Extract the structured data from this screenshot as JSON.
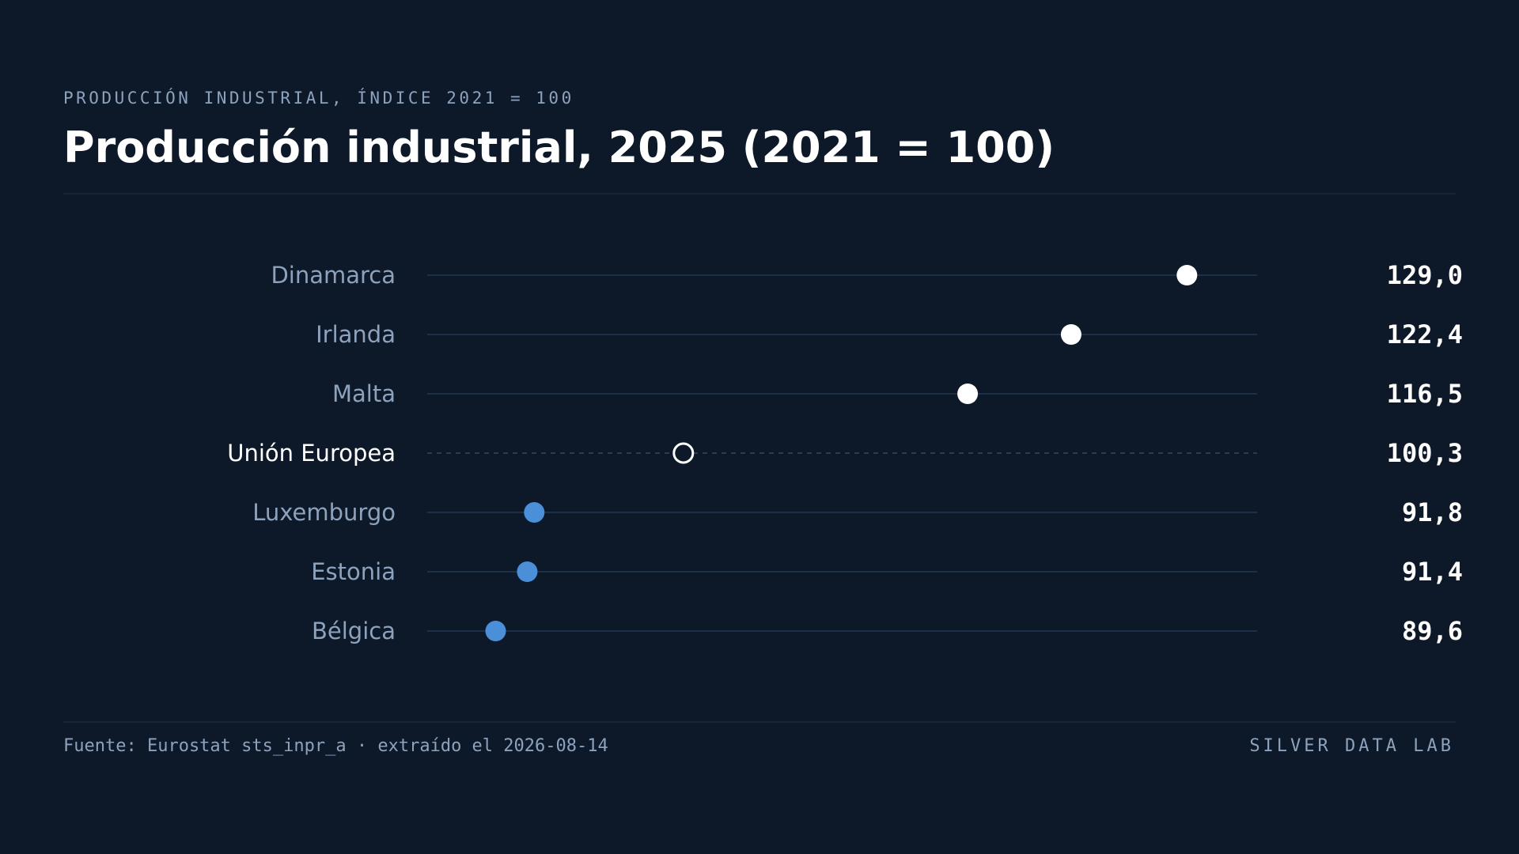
{
  "chart_data": {
    "type": "dot",
    "kicker": "PRODUCCIÓN INDUSTRIAL, ÍNDICE 2021 = 100",
    "title": "Producción industrial, 2025 (2021 = 100)",
    "categories": [
      "Dinamarca",
      "Irlanda",
      "Malta",
      "Unión Europea",
      "Luxemburgo",
      "Estonia",
      "Bélgica"
    ],
    "values": [
      129.0,
      122.4,
      116.5,
      100.3,
      91.8,
      91.4,
      89.6
    ],
    "value_labels": [
      "129,0",
      "122,4",
      "116,5",
      "100,3",
      "91,8",
      "91,4",
      "89,6"
    ],
    "colors": [
      "#ffffff",
      "#ffffff",
      "#ffffff",
      "#ffffff",
      "#4a8fd8",
      "#4a8fd8",
      "#4a8fd8"
    ],
    "reference": "Unión Europea",
    "xlim": [
      85.7,
      133.0
    ],
    "source": "Fuente: Eurostat sts_inpr_a · extraído el 2026-08-14",
    "brand": "SILVER DATA LAB"
  }
}
